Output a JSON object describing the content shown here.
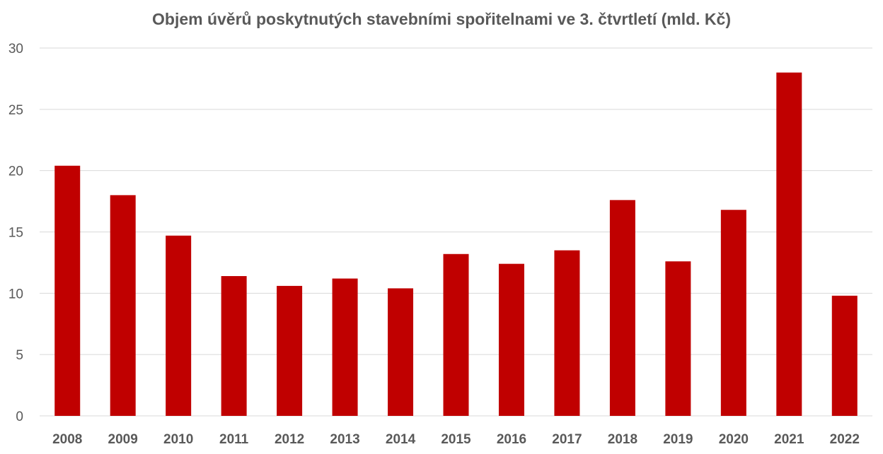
{
  "chart_data": {
    "type": "bar",
    "title": "Objem úvěrů poskytnutých stavebními spořitelnami ve 3. čtvrtletí (mld. Kč)",
    "xlabel": "",
    "ylabel": "",
    "categories": [
      "2008",
      "2009",
      "2010",
      "2011",
      "2012",
      "2013",
      "2014",
      "2015",
      "2016",
      "2017",
      "2018",
      "2019",
      "2020",
      "2021",
      "2022"
    ],
    "values": [
      20.4,
      18.0,
      14.7,
      11.4,
      10.6,
      11.2,
      10.4,
      13.2,
      12.4,
      13.5,
      17.6,
      12.6,
      16.8,
      28.0,
      9.8
    ],
    "ylim": [
      0,
      30
    ],
    "yticks": [
      0,
      5,
      10,
      15,
      20,
      25,
      30
    ],
    "grid": true,
    "legend": "none",
    "bar_color": "#C00000",
    "grid_color": "#D9D9D9"
  }
}
